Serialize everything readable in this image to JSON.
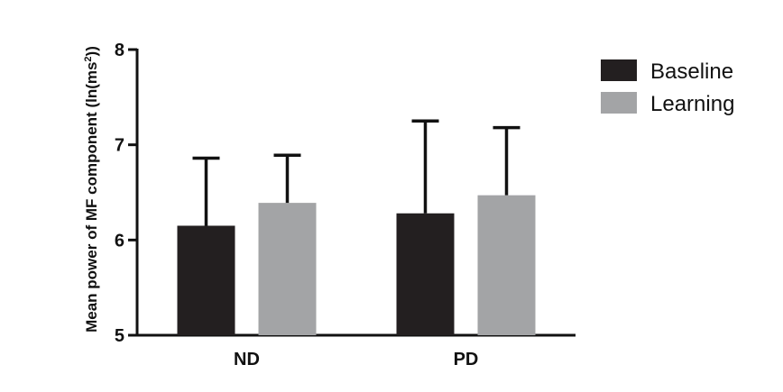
{
  "chart_data": {
    "type": "bar",
    "title": "",
    "ylabel": "Mean power of MF component (ln(ms2))",
    "ylabel_parts": {
      "main": "Mean power of MF component (ln(ms",
      "sup": "2",
      "tail": "))"
    },
    "xlabel": "",
    "categories": [
      "ND",
      "PD"
    ],
    "ylim": [
      5,
      8
    ],
    "yticks": [
      5,
      6,
      7,
      8
    ],
    "series": [
      {
        "name": "Baseline",
        "color": "#231f20",
        "values": [
          6.15,
          6.28
        ],
        "error": [
          0.71,
          0.97
        ]
      },
      {
        "name": "Learning",
        "color": "#a3a4a6",
        "values": [
          6.39,
          6.47
        ],
        "error": [
          0.5,
          0.71
        ]
      }
    ],
    "legend_position": "top-right",
    "grid": false
  }
}
